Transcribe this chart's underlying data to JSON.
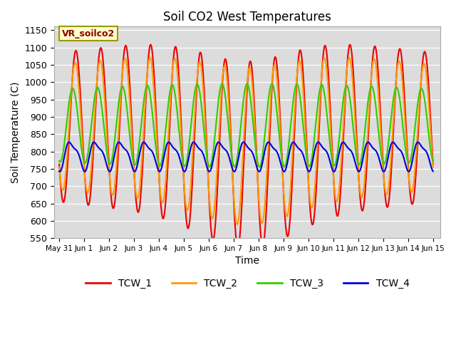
{
  "title": "Soil CO2 West Temperatures",
  "xlabel": "Time",
  "ylabel": "Soil Temperature (C)",
  "ylim": [
    550,
    1160
  ],
  "xlim_start": -0.2,
  "xlim_end": 15.3,
  "annotation_text": "VR_soilco2",
  "bg_color": "#dcdcdc",
  "fig_color": "#ffffff",
  "lines": {
    "TCW_1": {
      "color": "#ee0000",
      "lw": 1.5
    },
    "TCW_2": {
      "color": "#ff9900",
      "lw": 1.5
    },
    "TCW_3": {
      "color": "#33cc00",
      "lw": 1.5
    },
    "TCW_4": {
      "color": "#0000dd",
      "lw": 1.5
    }
  },
  "xtick_labels": [
    "May 31",
    "Jun 1",
    "Jun 2",
    "Jun 3",
    "Jun 4",
    "Jun 5",
    "Jun 6",
    "Jun 7",
    "Jun 8",
    "Jun 9",
    "Jun 10",
    "Jun 11",
    "Jun 12",
    "Jun 13",
    "Jun 14",
    "Jun 15"
  ],
  "ytick_vals": [
    550,
    600,
    650,
    700,
    750,
    800,
    850,
    900,
    950,
    1000,
    1050,
    1100,
    1150
  ],
  "grid_color": "#ffffff",
  "annotation_color": "#8b0000",
  "annotation_bg": "#ffffcc",
  "annotation_edge": "#999900"
}
